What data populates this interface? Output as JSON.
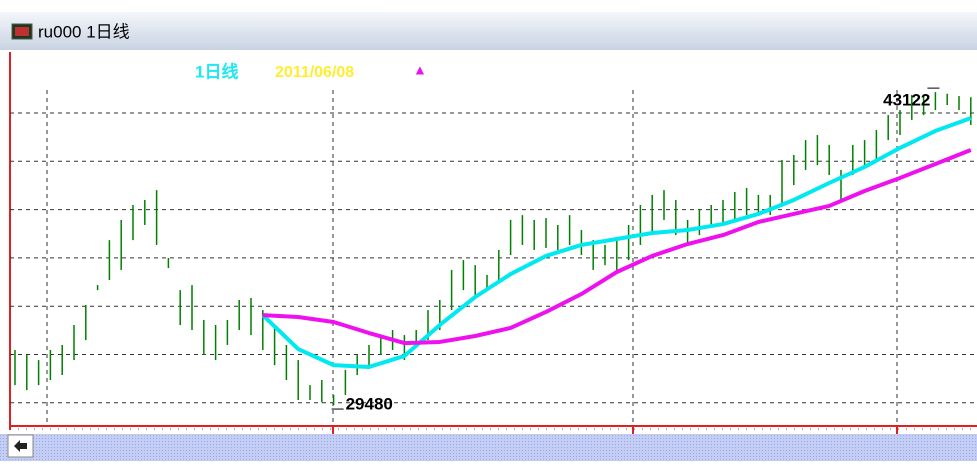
{
  "window_title": "ru000 1日线",
  "chart_data": {
    "type": "ohlc",
    "period_label": "1日线",
    "date": "2011/06/08",
    "marker": "▲",
    "color": "#008000",
    "grid": true,
    "ylim": [
      28610,
      44740
    ],
    "high": [
      31880,
      31660,
      31440,
      31880,
      32100,
      32970,
      33840,
      34710,
      36670,
      37550,
      38200,
      38420,
      38850,
      35890,
      34490,
      34710,
      33190,
      32970,
      33190,
      34060,
      34150,
      33620,
      32970,
      32100,
      31440,
      30350,
      30570,
      29920,
      31010,
      31660,
      32100,
      32530,
      32750,
      32530,
      32750,
      33620,
      34060,
      35370,
      35800,
      35580,
      35150,
      36240,
      37550,
      37760,
      37550,
      37630,
      37330,
      37760,
      37110,
      36670,
      36460,
      36670,
      37330,
      38200,
      38640,
      38850,
      38420,
      37550,
      37980,
      38200,
      38420,
      38770,
      38940,
      38640,
      38640,
      40160,
      40380,
      41030,
      41250,
      40820,
      39730,
      40820,
      41030,
      41470,
      42120,
      42340,
      43000,
      42980,
      43122,
      43050,
      42950,
      42900
    ],
    "low": [
      30350,
      30130,
      30350,
      30570,
      30790,
      31440,
      32310,
      34490,
      34930,
      35370,
      36670,
      37330,
      36460,
      35450,
      32970,
      32750,
      31660,
      31440,
      32100,
      32750,
      32530,
      31880,
      31220,
      30570,
      29700,
      29700,
      29600,
      29480,
      29920,
      30790,
      31220,
      31660,
      31880,
      31440,
      32100,
      32310,
      32750,
      33620,
      34490,
      34280,
      34490,
      34930,
      36020,
      36460,
      36240,
      36330,
      36240,
      36460,
      36020,
      35370,
      35580,
      35370,
      35800,
      36460,
      36890,
      37550,
      36890,
      36460,
      36890,
      37330,
      37330,
      37550,
      37760,
      37760,
      37760,
      38200,
      39070,
      39730,
      39940,
      39510,
      38420,
      39510,
      39940,
      40160,
      41030,
      41250,
      41910,
      42120,
      42340,
      42560,
      42340,
      41690
    ],
    "series": [
      {
        "color": "#00e8f0",
        "x": [
          21,
          24,
          27,
          30,
          33,
          36,
          39,
          42,
          45,
          48,
          51,
          54,
          57,
          60,
          63,
          66,
          69,
          72,
          75,
          78,
          81
        ],
        "values": [
          33400,
          31920,
          31220,
          31140,
          31620,
          32970,
          34190,
          35190,
          35980,
          36460,
          36720,
          36980,
          37110,
          37370,
          37810,
          38420,
          39160,
          39860,
          40690,
          41430,
          41990
        ]
      },
      {
        "color": "#ee10ee",
        "x": [
          21,
          24,
          27,
          30,
          33,
          36,
          39,
          42,
          45,
          48,
          51,
          54,
          57,
          60,
          63,
          66,
          69,
          72,
          75,
          78,
          81
        ],
        "values": [
          33400,
          33320,
          33100,
          32620,
          32180,
          32230,
          32490,
          32840,
          33540,
          34320,
          35280,
          35980,
          36500,
          36890,
          37460,
          37810,
          38160,
          38810,
          39380,
          39990,
          40600
        ]
      }
    ],
    "low_label": "29480",
    "high_label": "43122"
  }
}
